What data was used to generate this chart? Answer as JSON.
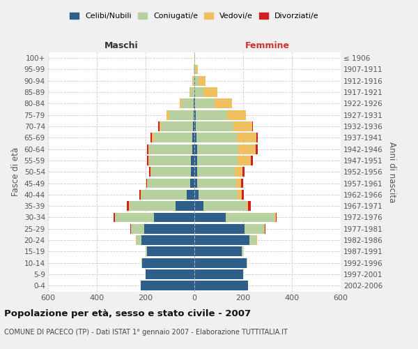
{
  "age_groups": [
    "0-4",
    "5-9",
    "10-14",
    "15-19",
    "20-24",
    "25-29",
    "30-34",
    "35-39",
    "40-44",
    "45-49",
    "50-54",
    "55-59",
    "60-64",
    "65-69",
    "70-74",
    "75-79",
    "80-84",
    "85-89",
    "90-94",
    "95-99",
    "100+"
  ],
  "birth_years": [
    "2002-2006",
    "1997-2001",
    "1992-1996",
    "1987-1991",
    "1982-1986",
    "1977-1981",
    "1972-1976",
    "1967-1971",
    "1962-1966",
    "1957-1961",
    "1952-1956",
    "1947-1951",
    "1942-1946",
    "1937-1941",
    "1932-1936",
    "1927-1931",
    "1922-1926",
    "1917-1921",
    "1912-1916",
    "1907-1911",
    "≤ 1906"
  ],
  "maschi": {
    "celibe": [
      220,
      200,
      215,
      195,
      218,
      205,
      165,
      78,
      32,
      16,
      13,
      13,
      10,
      8,
      6,
      4,
      2,
      1,
      0,
      0,
      0
    ],
    "coniugato": [
      0,
      0,
      2,
      5,
      20,
      55,
      160,
      188,
      185,
      175,
      165,
      172,
      175,
      158,
      130,
      100,
      50,
      15,
      5,
      2,
      0
    ],
    "vedovo": [
      0,
      0,
      0,
      0,
      1,
      1,
      2,
      2,
      2,
      2,
      2,
      3,
      5,
      8,
      8,
      10,
      8,
      5,
      3,
      0,
      0
    ],
    "divorziato": [
      0,
      0,
      0,
      0,
      1,
      3,
      5,
      8,
      8,
      5,
      5,
      5,
      5,
      5,
      5,
      0,
      0,
      0,
      0,
      0,
      0
    ]
  },
  "femmine": {
    "nubile": [
      220,
      200,
      215,
      195,
      225,
      205,
      128,
      38,
      18,
      12,
      12,
      12,
      10,
      8,
      6,
      5,
      3,
      3,
      2,
      0,
      0
    ],
    "coniugata": [
      0,
      0,
      2,
      5,
      30,
      80,
      200,
      175,
      160,
      160,
      155,
      165,
      170,
      165,
      155,
      130,
      80,
      35,
      15,
      5,
      0
    ],
    "vedova": [
      0,
      0,
      0,
      0,
      2,
      3,
      5,
      8,
      15,
      20,
      30,
      55,
      70,
      80,
      75,
      75,
      70,
      55,
      30,
      8,
      2
    ],
    "divorziata": [
      0,
      0,
      0,
      0,
      1,
      3,
      5,
      10,
      10,
      8,
      8,
      8,
      10,
      8,
      5,
      0,
      0,
      0,
      0,
      0,
      0
    ]
  },
  "colors": {
    "celibe": "#2e5f8a",
    "coniugato": "#b8cfa0",
    "vedovo": "#f0c060",
    "divorziato": "#cc2222"
  },
  "xlim": 600,
  "title": "Popolazione per età, sesso e stato civile - 2007",
  "subtitle": "COMUNE DI PACECO (TP) - Dati ISTAT 1° gennaio 2007 - Elaborazione TUTTITALIA.IT",
  "ylabel_left": "Fasce di età",
  "ylabel_right": "Anni di nascita",
  "xlabel_maschi": "Maschi",
  "xlabel_femmine": "Femmine",
  "legend_labels": [
    "Celibi/Nubili",
    "Coniugati/e",
    "Vedovi/e",
    "Divorziati/e"
  ],
  "bg_color": "#f0f0f0",
  "plot_bg_color": "#ffffff"
}
